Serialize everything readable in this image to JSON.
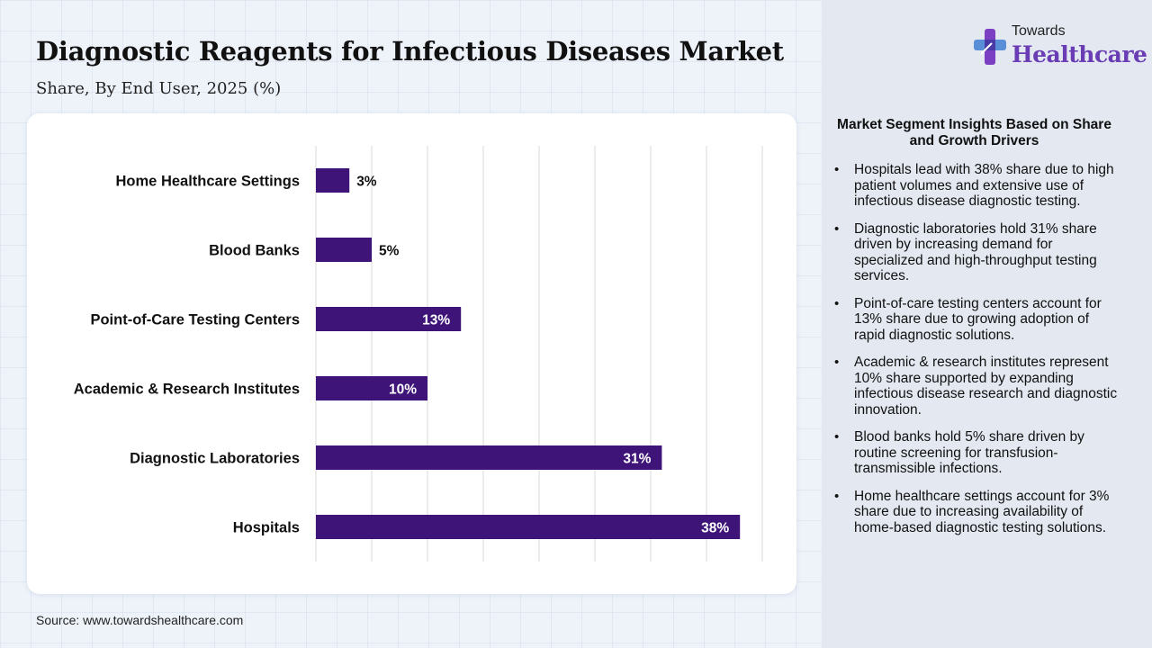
{
  "header": {
    "title": "Diagnostic Reagents for Infectious Diseases Market",
    "subtitle": "Share, By End User, 2025 (%)"
  },
  "logo": {
    "top": "Towards",
    "main": "Healthcare",
    "icon": "cross-logo-icon"
  },
  "source": "Source: www.towardshealthcare.com",
  "insights": {
    "title": "Market Segment Insights Based on Share and Growth Drivers",
    "items": [
      "Hospitals lead with 38% share due to high patient volumes and extensive use of infectious disease diagnostic testing.",
      "Diagnostic laboratories hold 31% share driven by increasing demand for specialized and high-throughput testing services.",
      "Point-of-care testing centers account for 13% share due to growing adoption of rapid diagnostic solutions.",
      "Academic & research institutes represent 10% share supported by expanding infectious disease research and diagnostic innovation.",
      "Blood banks hold 5% share driven by routine screening for transfusion-transmissible infections.",
      "Home healthcare settings account for 3% share due to increasing availability of home-based diagnostic testing solutions."
    ]
  },
  "chart_data": {
    "type": "bar",
    "orientation": "horizontal",
    "title": "Diagnostic Reagents for Infectious Diseases Market",
    "subtitle": "Share, By End User, 2025 (%)",
    "categories": [
      "Home Healthcare Settings",
      "Blood Banks",
      "Point-of-Care Testing Centers",
      "Academic & Research Institutes",
      "Diagnostic Laboratories",
      "Hospitals"
    ],
    "values": [
      3,
      5,
      13,
      10,
      31,
      38
    ],
    "value_labels": [
      "3%",
      "5%",
      "13%",
      "10%",
      "31%",
      "38%"
    ],
    "xlim": [
      0,
      40
    ],
    "grid": true,
    "legend": "none",
    "colors": {
      "bar": "#3f1478",
      "label_inside": "#ffffff",
      "label_outside": "#111111",
      "grid": "#d9d9d9"
    }
  }
}
